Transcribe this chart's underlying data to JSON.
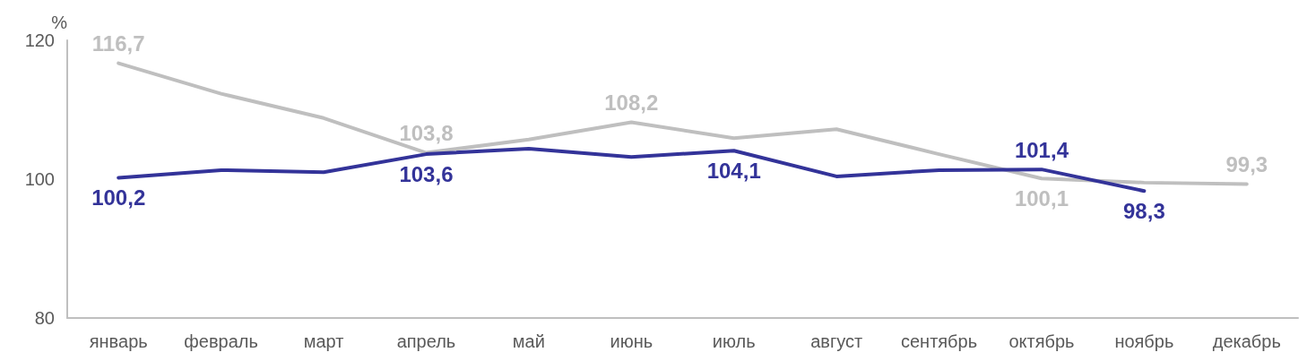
{
  "chart_data": {
    "type": "line",
    "ylabel": "%",
    "categories": [
      "январь",
      "февраль",
      "март",
      "апрель",
      "май",
      "июнь",
      "июль",
      "август",
      "сентябрь",
      "октябрь",
      "ноябрь",
      "декабрь"
    ],
    "series": [
      {
        "color": "#bfbfbf",
        "values": [
          116.7,
          112.3,
          108.8,
          103.8,
          105.7,
          108.2,
          105.9,
          107.2,
          103.6,
          100.1,
          99.5,
          99.3
        ],
        "value_labels": [
          "116,7",
          null,
          null,
          "103,8",
          null,
          "108,2",
          null,
          null,
          null,
          "100,1",
          null,
          "99,3"
        ]
      },
      {
        "color": "#333399",
        "values": [
          100.2,
          101.3,
          101.0,
          103.6,
          104.4,
          103.2,
          104.1,
          100.4,
          101.3,
          101.4,
          98.3,
          null
        ],
        "value_labels": [
          "100,2",
          null,
          null,
          "103,6",
          null,
          null,
          "104,1",
          null,
          null,
          "101,4",
          "98,3",
          null
        ]
      }
    ],
    "ylim": [
      80,
      120
    ],
    "yticks": [
      80,
      100,
      120
    ],
    "grid": false,
    "marker": "none",
    "line_style": "solid"
  }
}
